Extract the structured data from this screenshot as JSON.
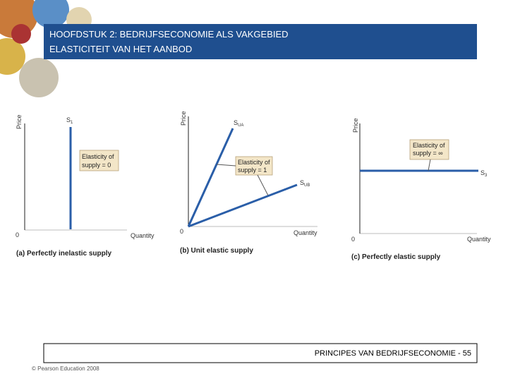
{
  "header": {
    "lines": [
      "HOOFDSTUK 2: BEDRIJFSECONOMIE ALS VAKGEBIED",
      "ELASTICITEIT VAN HET AANBOD"
    ]
  },
  "panels": [
    {
      "y_label": "Price",
      "x_label": "Quantity",
      "origin": "0",
      "curves": [
        {
          "label": "S",
          "sub": "1"
        }
      ],
      "box": [
        "Elasticity of",
        "supply = 0"
      ],
      "caption": "(a) Perfectly inelastic supply"
    },
    {
      "y_label": "Price",
      "x_label": "Quantity",
      "origin": "0",
      "curves": [
        {
          "label": "S",
          "sub": "UA"
        },
        {
          "label": "S",
          "sub": "UB"
        }
      ],
      "box": [
        "Elasticity of",
        "supply = 1"
      ],
      "caption": "(b) Unit elastic supply"
    },
    {
      "y_label": "Price",
      "x_label": "Quantity",
      "origin": "0",
      "curves": [
        {
          "label": "S",
          "sub": "3"
        }
      ],
      "box": [
        "Elasticity of",
        "supply = ∞"
      ],
      "caption": "(c) Perfectly elastic supply"
    }
  ],
  "footer": {
    "text": "PRINCIPES VAN BEDRIJFSECONOMIE - 55",
    "copyright": "© Pearson Education 2008"
  }
}
